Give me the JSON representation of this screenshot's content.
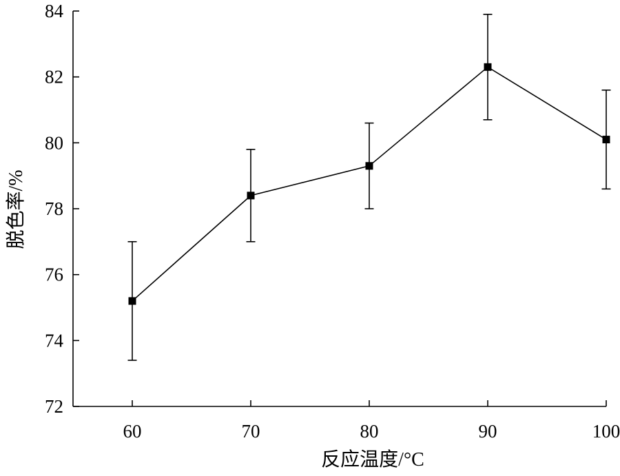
{
  "chart_data": {
    "type": "line",
    "title": "",
    "xlabel": "反应温度/°C",
    "ylabel": "脱色率/%",
    "x": [
      60,
      70,
      80,
      90,
      100
    ],
    "series": [
      {
        "values": [
          75.2,
          78.4,
          79.3,
          82.3,
          80.1
        ],
        "error_low": [
          73.4,
          77.0,
          78.0,
          80.7,
          78.6
        ],
        "error_high": [
          77.0,
          79.8,
          80.6,
          83.9,
          81.6
        ],
        "color": "#000000",
        "marker": "square"
      }
    ],
    "xticks": [
      "60",
      "70",
      "80",
      "90",
      "100"
    ],
    "yticks": [
      "72",
      "74",
      "76",
      "78",
      "80",
      "82",
      "84"
    ],
    "xlim": [
      55,
      100
    ],
    "ylim": [
      72,
      84
    ],
    "grid": false
  }
}
